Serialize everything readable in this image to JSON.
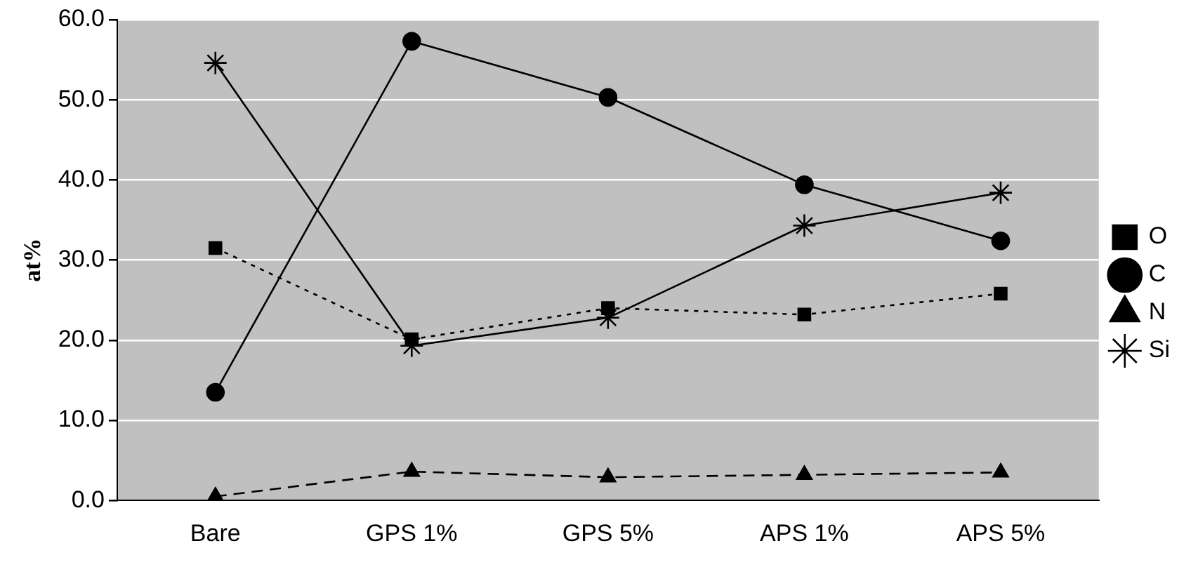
{
  "chart_data": {
    "type": "line",
    "ylabel": "at%",
    "categories": [
      "Bare",
      "GPS 1%",
      "GPS 5%",
      "APS 1%",
      "APS 5%"
    ],
    "series": [
      {
        "name": "O",
        "color": "#000000",
        "values": [
          31.5,
          20.1,
          24.0,
          23.2,
          25.8
        ],
        "marker": "square",
        "line_style": "dotted"
      },
      {
        "name": "C",
        "color": "#000000",
        "values": [
          13.5,
          57.3,
          50.3,
          39.4,
          32.4
        ],
        "marker": "circle",
        "line_style": "solid"
      },
      {
        "name": "N",
        "color": "#000000",
        "values": [
          0.5,
          3.6,
          2.9,
          3.2,
          3.5
        ],
        "marker": "triangle",
        "line_style": "dashed"
      },
      {
        "name": "Si",
        "color": "#000000",
        "values": [
          54.6,
          19.3,
          22.8,
          34.3,
          38.4
        ],
        "marker": "cross",
        "line_style": "solid"
      }
    ],
    "ylim": [
      0,
      60
    ],
    "yticks": [
      {
        "value": 0,
        "label": "0.0"
      },
      {
        "value": 10,
        "label": "10.0"
      },
      {
        "value": 20,
        "label": "20.0"
      },
      {
        "value": 30,
        "label": "30.0"
      },
      {
        "value": 40,
        "label": "40.0"
      },
      {
        "value": 50,
        "label": "50.0"
      },
      {
        "value": 60,
        "label": "60.0"
      }
    ],
    "grid": "y",
    "legend": "right"
  }
}
